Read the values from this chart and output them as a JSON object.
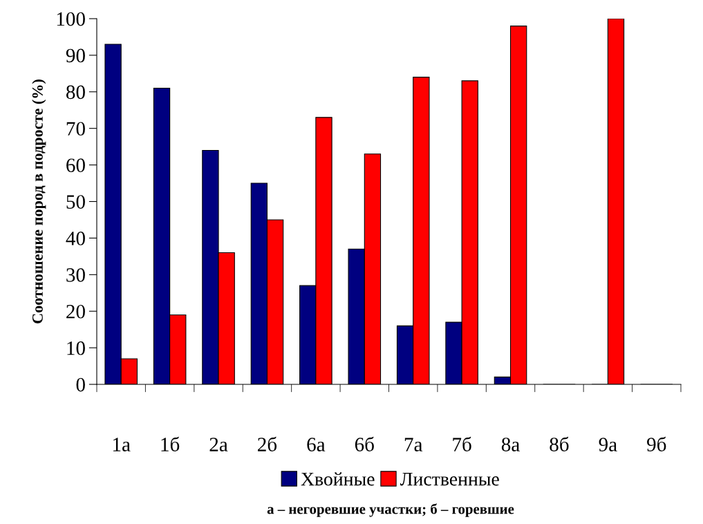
{
  "chart_data": {
    "type": "bar",
    "ylabel": "Соотношение пород в подросте (%)",
    "categories": [
      "1а",
      "1б",
      "2а",
      "2б",
      "6а",
      "6б",
      "7а",
      "7б",
      "8а",
      "8б",
      "9а",
      "9б"
    ],
    "series": [
      {
        "name": "Хвойные",
        "color": "#000080",
        "values": [
          93,
          81,
          64,
          55,
          27,
          37,
          16,
          17,
          2,
          0,
          0,
          0
        ]
      },
      {
        "name": "Лиственные",
        "color": "#ff0000",
        "values": [
          7,
          19,
          36,
          45,
          73,
          63,
          84,
          83,
          98,
          0,
          100,
          0
        ]
      }
    ],
    "ylim": [
      0,
      100
    ],
    "yticks": [
      0,
      10,
      20,
      30,
      40,
      50,
      60,
      70,
      80,
      90,
      100
    ],
    "grid": false,
    "legend": "bottom",
    "annotations": [
      "а – негоревшие участки; б – горевшие"
    ]
  }
}
